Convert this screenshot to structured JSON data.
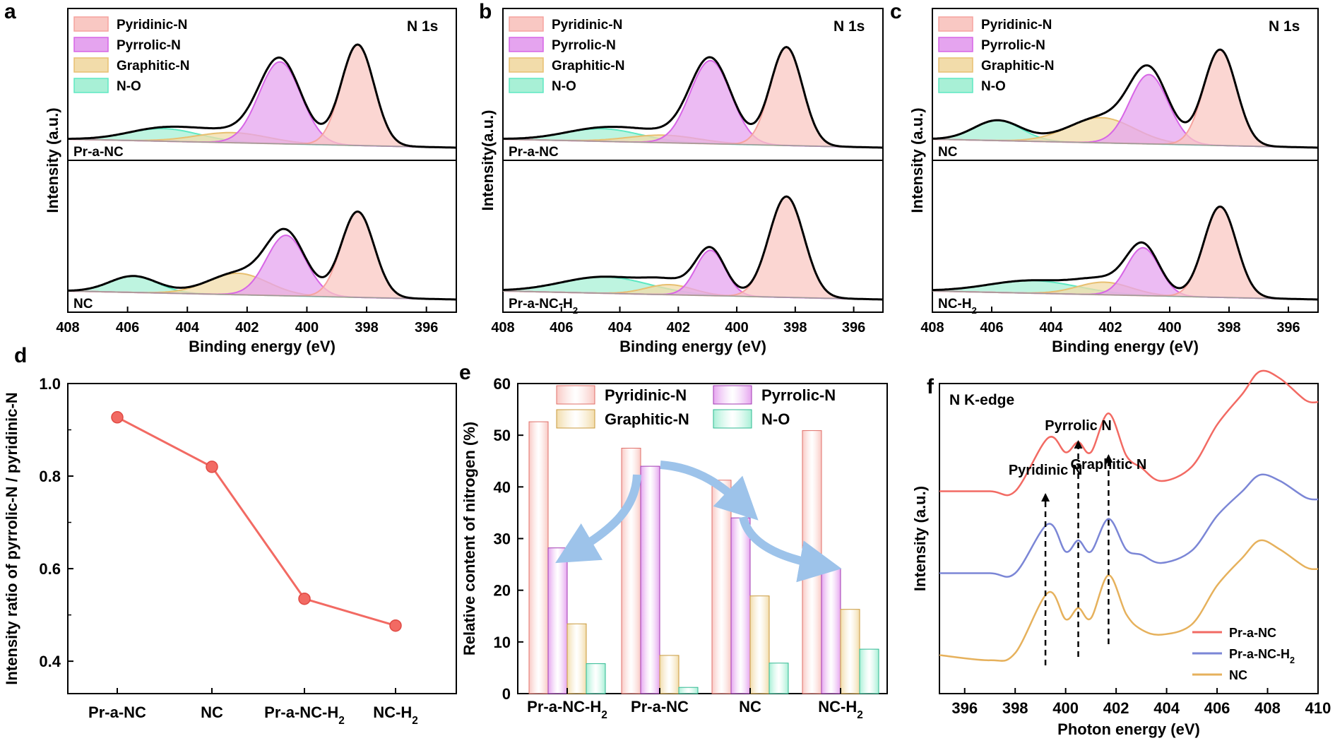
{
  "colors": {
    "pyridinic": "#f6a39e",
    "pyridinic_fill": "#f9c8c3",
    "pyrrolic": "#d765e6",
    "pyrrolic_fill": "#e5a4ef",
    "graphitic": "#e8bf70",
    "graphitic_fill": "#f2dcaa",
    "no": "#5ee8c2",
    "no_fill": "#a8f0d6",
    "envelope": "#000000",
    "red_line": "#f26a63",
    "blue_line": "#7b86d6",
    "gold_line": "#e6b15c",
    "arrow": "#9dc3ea"
  },
  "chart_data": [
    {
      "panel": "a",
      "type": "line",
      "title": "N 1s",
      "xlabel": "Binding energy (eV)",
      "ylabel": "Intensity (a.u.)",
      "xlim": [
        408,
        395
      ],
      "xticks": [
        "408",
        "406",
        "404",
        "402",
        "400",
        "398",
        "396"
      ],
      "legend": [
        "Pyridinic-N",
        "Pyrrolic-N",
        "Graphitic-N",
        "N-O"
      ],
      "legend_position": "top-left",
      "samples": [
        {
          "name": "Pr-a-NC",
          "components": [
            {
              "name": "Pyridinic-N",
              "center": 398.3,
              "height": 0.8,
              "width": 0.55
            },
            {
              "name": "Pyrrolic-N",
              "center": 400.9,
              "height": 0.65,
              "width": 0.7
            },
            {
              "name": "Graphitic-N",
              "center": 402.5,
              "height": 0.08,
              "width": 1.2
            },
            {
              "name": "N-O",
              "center": 404.8,
              "height": 0.1,
              "width": 1.2
            }
          ]
        },
        {
          "name": "NC",
          "components": [
            {
              "name": "Pyridinic-N",
              "center": 398.3,
              "height": 0.68,
              "width": 0.55
            },
            {
              "name": "Pyrrolic-N",
              "center": 400.7,
              "height": 0.48,
              "width": 0.65
            },
            {
              "name": "Graphitic-N",
              "center": 402.3,
              "height": 0.17,
              "width": 1.0
            },
            {
              "name": "N-O",
              "center": 405.8,
              "height": 0.13,
              "width": 0.8
            }
          ]
        }
      ]
    },
    {
      "panel": "b",
      "type": "line",
      "title": "N 1s",
      "xlabel": "Binding energy (eV)",
      "ylabel": "Intensity(a.u.)",
      "xlim": [
        408,
        395
      ],
      "xticks": [
        "408",
        "406",
        "404",
        "402",
        "400",
        "398",
        "396"
      ],
      "legend": [
        "Pyridinic-N",
        "Pyrrolic-N",
        "Graphitic-N",
        "N-O"
      ],
      "legend_position": "top-left",
      "samples": [
        {
          "name": "Pr-a-NC",
          "components": [
            {
              "name": "Pyridinic-N",
              "center": 398.3,
              "height": 0.78,
              "width": 0.55
            },
            {
              "name": "Pyrrolic-N",
              "center": 400.9,
              "height": 0.66,
              "width": 0.7
            },
            {
              "name": "Graphitic-N",
              "center": 402.5,
              "height": 0.06,
              "width": 1.2
            },
            {
              "name": "N-O",
              "center": 404.6,
              "height": 0.1,
              "width": 1.3
            }
          ]
        },
        {
          "name": "Pr-a-NC-H₂",
          "components": [
            {
              "name": "Pyridinic-N",
              "center": 398.3,
              "height": 0.8,
              "width": 0.6
            },
            {
              "name": "Pyrrolic-N",
              "center": 400.9,
              "height": 0.36,
              "width": 0.5
            },
            {
              "name": "Graphitic-N",
              "center": 402.3,
              "height": 0.08,
              "width": 0.8
            },
            {
              "name": "N-O",
              "center": 404.5,
              "height": 0.13,
              "width": 1.5
            }
          ]
        }
      ]
    },
    {
      "panel": "c",
      "type": "line",
      "title": "N 1s",
      "xlabel": "Binding energy (eV)",
      "ylabel": "Intensity (a.u.)",
      "xlim": [
        408,
        395
      ],
      "xticks": [
        "408",
        "406",
        "404",
        "402",
        "400",
        "398",
        "396"
      ],
      "legend": [
        "Pyridinic-N",
        "Pyrrolic-N",
        "Graphitic-N",
        "N-O"
      ],
      "legend_position": "top-left",
      "samples": [
        {
          "name": "NC",
          "components": [
            {
              "name": "Pyridinic-N",
              "center": 398.3,
              "height": 0.76,
              "width": 0.55
            },
            {
              "name": "Pyrrolic-N",
              "center": 400.7,
              "height": 0.55,
              "width": 0.65
            },
            {
              "name": "Graphitic-N",
              "center": 402.3,
              "height": 0.2,
              "width": 1.1
            },
            {
              "name": "N-O",
              "center": 405.8,
              "height": 0.16,
              "width": 0.8
            }
          ]
        },
        {
          "name": "NC-H₂",
          "components": [
            {
              "name": "Pyridinic-N",
              "center": 398.3,
              "height": 0.72,
              "width": 0.55
            },
            {
              "name": "Pyrrolic-N",
              "center": 400.9,
              "height": 0.38,
              "width": 0.55
            },
            {
              "name": "Graphitic-N",
              "center": 402.2,
              "height": 0.1,
              "width": 0.9
            },
            {
              "name": "N-O",
              "center": 404.6,
              "height": 0.1,
              "width": 1.5
            }
          ]
        }
      ]
    },
    {
      "panel": "d",
      "type": "line",
      "title": "",
      "xlabel": "",
      "ylabel": "Intensity ratio of pyrrolic-N / pyridinic-N",
      "categories": [
        "Pr-a-NC",
        "NC",
        "Pr-a-NC-H₂",
        "NC-H₂"
      ],
      "values": [
        0.927,
        0.82,
        0.535,
        0.477
      ],
      "ylim": [
        0.33,
        1.0
      ],
      "yticks": [
        "0.4",
        "0.6",
        "0.8",
        "1.0"
      ]
    },
    {
      "panel": "e",
      "type": "bar",
      "title": "",
      "xlabel": "",
      "ylabel": "Relative content of nitrogen (%)",
      "categories": [
        "Pr-a-NC-H₂",
        "Pr-a-NC",
        "NC",
        "NC-H₂"
      ],
      "series": [
        {
          "name": "Pyridinic-N",
          "values": [
            52.6,
            47.5,
            41.3,
            50.9
          ]
        },
        {
          "name": "Pyrrolic-N",
          "values": [
            28.2,
            44.0,
            34.0,
            24.2
          ]
        },
        {
          "name": "Graphitic-N",
          "values": [
            13.5,
            7.4,
            18.9,
            16.3
          ]
        },
        {
          "name": "N-O",
          "values": [
            5.8,
            1.2,
            5.9,
            8.6
          ]
        }
      ],
      "ylim": [
        0,
        60
      ],
      "yticks": [
        "0",
        "10",
        "20",
        "30",
        "40",
        "50",
        "60"
      ],
      "legend_position": "top"
    },
    {
      "panel": "f",
      "type": "line",
      "title": "N K-edge",
      "xlabel": "Photon energy (eV)",
      "ylabel": "Intensity (a.u.)",
      "xlim": [
        395,
        410
      ],
      "xticks": [
        "396",
        "398",
        "400",
        "402",
        "404",
        "406",
        "408",
        "410"
      ],
      "annotations": [
        "Pyridinic N",
        "Pyrrolic N",
        "Graphitic N"
      ],
      "annotation_x": [
        399.2,
        400.5,
        401.7
      ],
      "series": [
        {
          "name": "Pr-a-NC",
          "offset": 1.6,
          "x": [
            395,
            397,
            398,
            399.3,
            400.0,
            400.5,
            401.0,
            401.7,
            402.4,
            403.0,
            403.8,
            405.0,
            406.0,
            407.0,
            407.7,
            408.5,
            409.5,
            410
          ],
          "y": [
            0.1,
            0.1,
            0.1,
            0.62,
            0.48,
            0.58,
            0.48,
            0.86,
            0.45,
            0.33,
            0.2,
            0.34,
            0.75,
            1.05,
            1.27,
            1.2,
            0.99,
            0.97
          ]
        },
        {
          "name": "Pr-a-NC-H₂",
          "offset": 0.8,
          "x": [
            395,
            397,
            398,
            399.3,
            400.0,
            400.5,
            401.0,
            401.7,
            402.4,
            403.0,
            403.8,
            405.0,
            406.0,
            407.0,
            407.7,
            408.5,
            409.5,
            410
          ],
          "y": [
            0.1,
            0.1,
            0.1,
            0.58,
            0.31,
            0.42,
            0.31,
            0.63,
            0.33,
            0.28,
            0.2,
            0.32,
            0.66,
            0.9,
            1.06,
            1.0,
            0.84,
            0.82
          ]
        },
        {
          "name": "NC",
          "offset": 0.0,
          "x": [
            395,
            397,
            398,
            399.3,
            400.0,
            400.5,
            401.0,
            401.7,
            402.4,
            403.0,
            403.8,
            405.0,
            406.0,
            407.0,
            407.7,
            408.5,
            409.5,
            410
          ],
          "y": [
            0.1,
            0.05,
            0.12,
            0.71,
            0.45,
            0.56,
            0.46,
            0.88,
            0.5,
            0.35,
            0.3,
            0.4,
            0.78,
            1.05,
            1.22,
            1.13,
            0.96,
            0.94
          ]
        }
      ],
      "legend_position": "bottom-right"
    }
  ]
}
